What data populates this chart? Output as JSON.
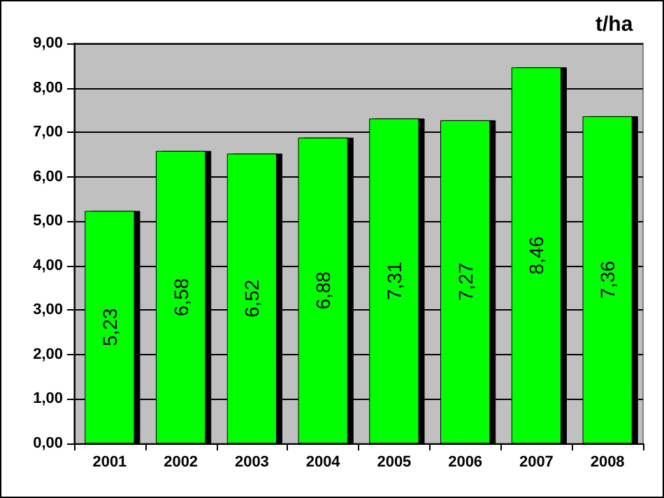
{
  "chart_data": {
    "type": "bar",
    "ylabel": "t/ha",
    "categories": [
      "2001",
      "2002",
      "2003",
      "2004",
      "2005",
      "2006",
      "2007",
      "2008"
    ],
    "values": [
      5.23,
      6.58,
      6.52,
      6.88,
      7.31,
      7.27,
      8.46,
      7.36
    ],
    "value_labels": [
      "5,23",
      "6,58",
      "6,52",
      "6,88",
      "7,31",
      "7,27",
      "8,46",
      "7,36"
    ],
    "color": "#00ff00",
    "ylim": [
      0,
      9
    ],
    "yticks": [
      {
        "value": 0,
        "label": "0,00"
      },
      {
        "value": 1,
        "label": "1,00"
      },
      {
        "value": 2,
        "label": "2,00"
      },
      {
        "value": 3,
        "label": "3,00"
      },
      {
        "value": 4,
        "label": "4,00"
      },
      {
        "value": 5,
        "label": "5,00"
      },
      {
        "value": 6,
        "label": "6,00"
      },
      {
        "value": 7,
        "label": "7,00"
      },
      {
        "value": 8,
        "label": "8,00"
      },
      {
        "value": 9,
        "label": "9,00"
      }
    ],
    "grid": "y"
  }
}
